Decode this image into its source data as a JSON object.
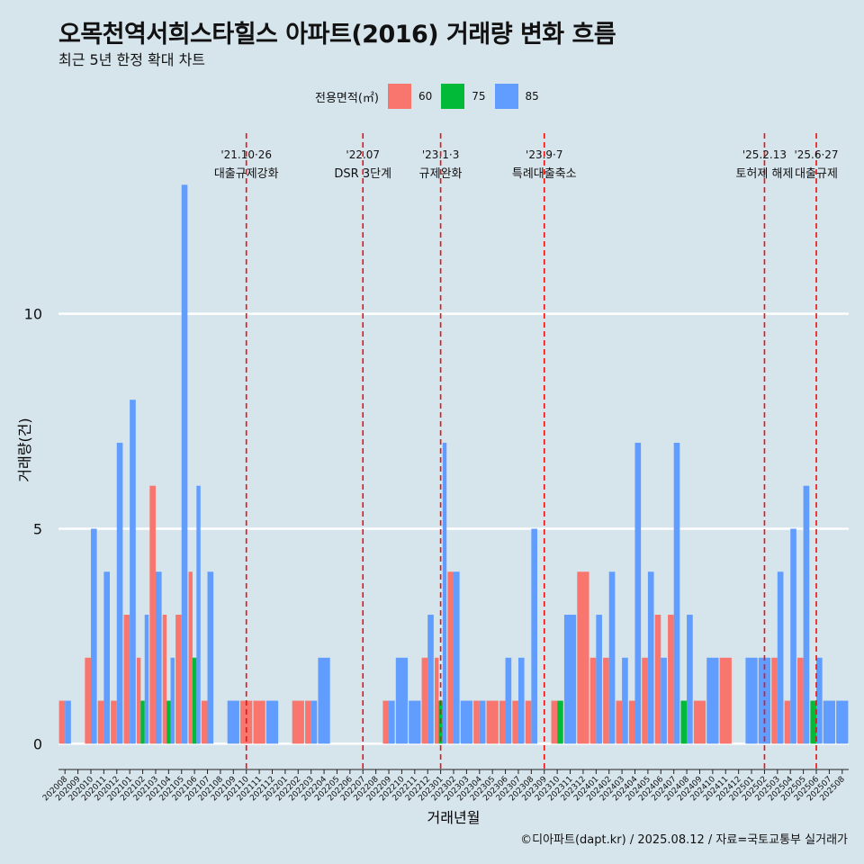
{
  "title": "오목천역서희스타힐스 아파트(2016) 거래량 변화 흐름",
  "subtitle": "최근 5년 한정 확대 차트",
  "footer": "©디아파트(dapt.kr) / 2025.08.12 / 자료=국토교통부 실거래가",
  "legend": {
    "title": "전용면적(㎡)",
    "items": [
      {
        "label": "60",
        "color": "#f8766d"
      },
      {
        "label": "75",
        "color": "#00ba38"
      },
      {
        "label": "85",
        "color": "#619cff"
      }
    ]
  },
  "chart_data": {
    "type": "bar",
    "title": "오목천역서희스타힐스 아파트(2016) 거래량 변화 흐름",
    "subtitle": "최근 5년 한정 확대 차트",
    "xlabel": "거래년월",
    "ylabel": "거래량(건)",
    "ylim": [
      -0.6,
      14.2
    ],
    "yticks": [
      0,
      5,
      10
    ],
    "grid": true,
    "legend_position": "top",
    "categories": [
      "202008",
      "202009",
      "202010",
      "202011",
      "202012",
      "202101",
      "202102",
      "202103",
      "202104",
      "202105",
      "202106",
      "202107",
      "202108",
      "202109",
      "202110",
      "202111",
      "202112",
      "202201",
      "202202",
      "202203",
      "202204",
      "202205",
      "202206",
      "202207",
      "202208",
      "202209",
      "202210",
      "202211",
      "202212",
      "202301",
      "202302",
      "202303",
      "202304",
      "202305",
      "202306",
      "202307",
      "202308",
      "202309",
      "202310",
      "202311",
      "202312",
      "202401",
      "202402",
      "202403",
      "202404",
      "202405",
      "202406",
      "202407",
      "202408",
      "202409",
      "202410",
      "202411",
      "202412",
      "202501",
      "202502",
      "202503",
      "202504",
      "202505",
      "202506",
      "202507",
      "202508"
    ],
    "series": [
      {
        "name": "60",
        "color": "#f8766d",
        "values": [
          1,
          0,
          2,
          1,
          1,
          3,
          2,
          6,
          3,
          3,
          4,
          1,
          0,
          0,
          1,
          1,
          0,
          0,
          1,
          1,
          0,
          0,
          0,
          0,
          0,
          1,
          0,
          0,
          2,
          2,
          4,
          0,
          1,
          1,
          1,
          1,
          1,
          0,
          1,
          0,
          4,
          2,
          2,
          1,
          1,
          2,
          3,
          3,
          0,
          1,
          0,
          2,
          0,
          0,
          0,
          2,
          1,
          2,
          0,
          0,
          0
        ]
      },
      {
        "name": "75",
        "color": "#00ba38",
        "values": [
          0,
          0,
          0,
          0,
          0,
          0,
          1,
          0,
          1,
          0,
          2,
          0,
          0,
          0,
          0,
          0,
          0,
          0,
          0,
          0,
          0,
          0,
          0,
          0,
          0,
          0,
          0,
          0,
          0,
          1,
          0,
          0,
          0,
          0,
          0,
          0,
          0,
          0,
          1,
          0,
          0,
          0,
          0,
          0,
          0,
          0,
          0,
          0,
          1,
          0,
          0,
          0,
          0,
          0,
          0,
          0,
          0,
          0,
          1,
          0,
          0
        ]
      },
      {
        "name": "85",
        "color": "#619cff",
        "values": [
          1,
          0,
          5,
          4,
          7,
          8,
          3,
          4,
          2,
          13,
          6,
          4,
          0,
          1,
          0,
          0,
          1,
          0,
          0,
          1,
          2,
          0,
          0,
          0,
          0,
          1,
          2,
          1,
          3,
          7,
          4,
          1,
          1,
          0,
          2,
          2,
          5,
          0,
          0,
          3,
          0,
          3,
          4,
          2,
          7,
          4,
          2,
          7,
          3,
          0,
          2,
          0,
          0,
          2,
          2,
          4,
          5,
          6,
          2,
          1,
          1
        ]
      }
    ],
    "annotations": [
      {
        "category": "202110",
        "line1": "'21.10·26",
        "line2": "대출규제강화"
      },
      {
        "category": "202207",
        "line1": "'22.07",
        "line2": "DSR 3단계"
      },
      {
        "category": "202301",
        "line1": "'23.1·3",
        "line2": "규제완화"
      },
      {
        "category": "202309",
        "line1": "'23.9·7",
        "line2": "특례대출축소"
      },
      {
        "category": "202502",
        "line1": "'25.2.13",
        "line2": "토허제 해제"
      },
      {
        "category": "202506",
        "line1": "'25.6·27",
        "line2": "대출규제"
      }
    ]
  }
}
